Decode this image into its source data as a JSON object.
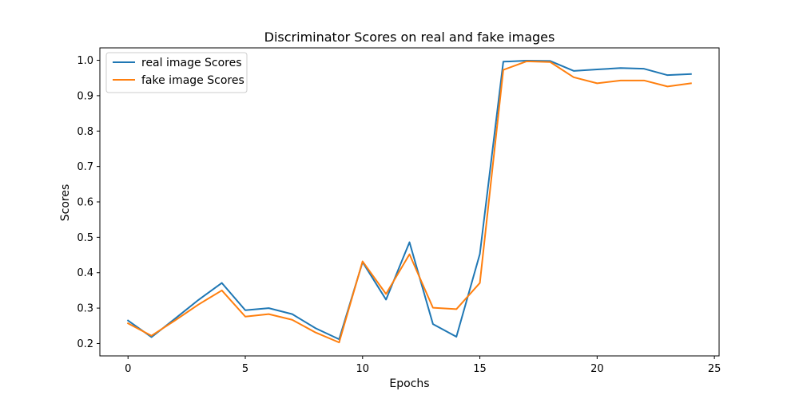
{
  "chart_data": {
    "type": "line",
    "title": "Discriminator Scores on real and fake images",
    "xlabel": "Epochs",
    "ylabel": "Scores",
    "xlim": [
      -1.2,
      25.2
    ],
    "ylim": [
      0.165,
      1.035
    ],
    "xticks": [
      0,
      5,
      10,
      15,
      20,
      25
    ],
    "yticks": [
      0.2,
      0.3,
      0.4,
      0.5,
      0.6,
      0.7,
      0.8,
      0.9,
      1.0
    ],
    "xtick_labels": [
      "0",
      "5",
      "10",
      "15",
      "20",
      "25"
    ],
    "ytick_labels": [
      "0.2",
      "0.3",
      "0.4",
      "0.5",
      "0.6",
      "0.7",
      "0.8",
      "0.9",
      "1.0"
    ],
    "grid": false,
    "legend_position": "top-left",
    "x": [
      0,
      1,
      2,
      3,
      4,
      5,
      6,
      7,
      8,
      9,
      10,
      11,
      12,
      13,
      14,
      15,
      16,
      17,
      18,
      19,
      20,
      21,
      22,
      23,
      24
    ],
    "series": [
      {
        "name": "real image Scores",
        "color": "#1f77b4",
        "values": [
          0.265,
          0.218,
          0.27,
          0.323,
          0.371,
          0.294,
          0.3,
          0.283,
          0.243,
          0.212,
          0.43,
          0.324,
          0.486,
          0.255,
          0.219,
          0.453,
          0.996,
          0.999,
          0.998,
          0.97,
          0.974,
          0.978,
          0.976,
          0.958,
          0.961
        ]
      },
      {
        "name": "fake image Scores",
        "color": "#ff7f0e",
        "values": [
          0.257,
          0.222,
          0.265,
          0.31,
          0.35,
          0.276,
          0.283,
          0.267,
          0.231,
          0.203,
          0.432,
          0.34,
          0.452,
          0.301,
          0.297,
          0.371,
          0.973,
          0.997,
          0.995,
          0.952,
          0.935,
          0.943,
          0.943,
          0.926,
          0.935
        ]
      }
    ]
  }
}
